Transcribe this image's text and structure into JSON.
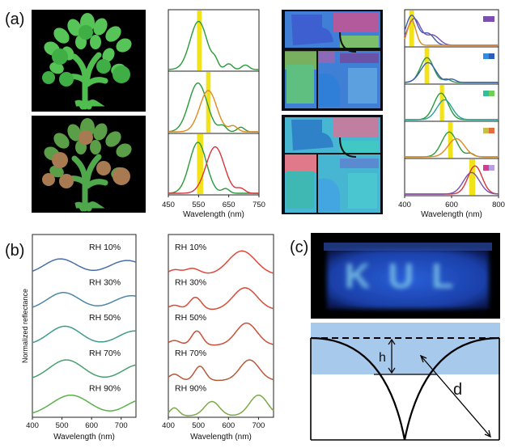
{
  "panel_labels": {
    "a": "(a)",
    "b": "(b)",
    "c": "(c)"
  },
  "colors": {
    "green_line": "#2a9a3a",
    "orange_line": "#e08a20",
    "red_line": "#d8343a",
    "yellow_band": "#f2e21a",
    "blue_line": "#3a5fb0",
    "purple_line": "#7a4fb0",
    "diagram_fill": "#a7c9ec",
    "device_glow": "#3a6ff0"
  },
  "chart_data": [
    {
      "id": "a-center",
      "type": "line",
      "xlabel": "Wavelength (nm)",
      "xlim": [
        450,
        750
      ],
      "xticks": [
        450,
        550,
        650,
        750
      ],
      "xtick_labels": [
        "450",
        "550",
        "650",
        "750"
      ],
      "subplots": [
        {
          "band": [
            545,
            560
          ],
          "series": [
            {
              "color": "green",
              "peaks": [
                [
                  550,
                  0.85,
                  28
                ],
                [
                  605,
                  0.12,
                  10
                ],
                [
                  650,
                  0.1,
                  12
                ],
                [
                  705,
                  0.08,
                  12
                ]
              ]
            }
          ]
        },
        {
          "band": [
            575,
            590
          ],
          "series": [
            {
              "color": "green",
              "peaks": [
                [
                  548,
                  0.85,
                  30
                ],
                [
                  630,
                  0.1,
                  12
                ],
                [
                  690,
                  0.08,
                  12
                ]
              ]
            },
            {
              "color": "orange",
              "peaks": [
                [
                  582,
                  0.72,
                  28
                ],
                [
                  665,
                  0.1,
                  14
                ]
              ]
            }
          ]
        },
        {
          "band": [
            545,
            565
          ],
          "series": [
            {
              "color": "green",
              "peaks": [
                [
                  548,
                  0.9,
                  28
                ],
                [
                  640,
                  0.08,
                  12
                ]
              ]
            },
            {
              "color": "red",
              "peaks": [
                [
                  605,
                  0.82,
                  30
                ],
                [
                  690,
                  0.08,
                  14
                ]
              ]
            }
          ]
        }
      ]
    },
    {
      "id": "a-right",
      "type": "line",
      "xlabel": "Wavelength (nm)",
      "xlim": [
        400,
        800
      ],
      "xticks": [
        400,
        600,
        800
      ],
      "xtick_labels": [
        "400",
        "600",
        "800"
      ],
      "subplots": [
        {
          "band": [
            420,
            440
          ],
          "swatches": [
            "#7a4fb0",
            "#7a4fb0"
          ],
          "series": [
            {
              "color": "blue",
              "peaks": [
                [
                  430,
                  0.9,
                  25
                ],
                [
                  500,
                  0.35,
                  25
                ]
              ]
            },
            {
              "color": "purple",
              "peaks": [
                [
                  440,
                  0.8,
                  28
                ],
                [
                  520,
                  0.3,
                  28
                ]
              ]
            },
            {
              "color": "orange",
              "peaks": [
                [
                  430,
                  0.75,
                  18
                ]
              ]
            }
          ]
        },
        {
          "band": [
            485,
            505
          ],
          "swatches": [
            "#2f8ee0",
            "#2c5fb8"
          ],
          "series": [
            {
              "color": "green",
              "peaks": [
                [
                  495,
                  0.75,
                  28
                ],
                [
                  580,
                  0.1,
                  16
                ]
              ]
            },
            {
              "color": "blue",
              "peaks": [
                [
                  500,
                  0.6,
                  32
                ],
                [
                  600,
                  0.1,
                  18
                ]
              ]
            }
          ]
        },
        {
          "band": [
            550,
            568
          ],
          "swatches": [
            "#2fbf9a",
            "#6fcf5a"
          ],
          "series": [
            {
              "color": "green",
              "peaks": [
                [
                  555,
                  0.8,
                  30
                ]
              ]
            },
            {
              "color": "teal",
              "peaks": [
                [
                  570,
                  0.6,
                  32
                ]
              ]
            }
          ]
        },
        {
          "band": [
            585,
            605
          ],
          "swatches": [
            "#c8c040",
            "#e07040"
          ],
          "series": [
            {
              "color": "green",
              "peaks": [
                [
                  590,
                  0.75,
                  32
                ],
                [
                  680,
                  0.1,
                  16
                ]
              ]
            },
            {
              "color": "orange",
              "peaks": [
                [
                  620,
                  0.55,
                  35
                ]
              ]
            }
          ]
        },
        {
          "band": [
            675,
            700
          ],
          "swatches": [
            "#d04090",
            "#b8a0e0"
          ],
          "series": [
            {
              "color": "red",
              "peaks": [
                [
                  700,
                  0.85,
                  30
                ]
              ]
            },
            {
              "color": "purple",
              "peaks": [
                [
                  685,
                  0.65,
                  34
                ]
              ]
            }
          ]
        }
      ]
    },
    {
      "id": "b-left",
      "type": "line",
      "xlabel": "Wavelength (nm)",
      "ylabel": "Normalized reflectance",
      "xlim": [
        400,
        750
      ],
      "xticks": [
        400,
        500,
        600,
        700
      ],
      "xtick_labels": [
        "400",
        "500",
        "600",
        "700"
      ],
      "series": [
        {
          "name": "RH 10%",
          "color": "#4a6fa8",
          "peaks": [
            [
              495,
              0.5,
              55
            ],
            [
              720,
              0.45,
              60
            ]
          ]
        },
        {
          "name": "RH 30%",
          "color": "#4b87a6",
          "peaks": [
            [
              505,
              0.55,
              55
            ],
            [
              735,
              0.45,
              60
            ]
          ]
        },
        {
          "name": "RH 50%",
          "color": "#3f9a8c",
          "peaks": [
            [
              510,
              0.6,
              55
            ],
            [
              745,
              0.45,
              55
            ]
          ]
        },
        {
          "name": "RH 70%",
          "color": "#46a070",
          "peaks": [
            [
              515,
              0.65,
              58
            ],
            [
              760,
              0.5,
              55
            ]
          ]
        },
        {
          "name": "RH 90%",
          "color": "#5cb04c",
          "peaks": [
            [
              530,
              0.65,
              65
            ],
            [
              770,
              0.5,
              55
            ]
          ]
        }
      ]
    },
    {
      "id": "b-right",
      "type": "line",
      "xlabel": "Wavelength (nm)",
      "xlim": [
        400,
        750
      ],
      "xticks": [
        400,
        500,
        600,
        700
      ],
      "xtick_labels": [
        "400",
        "500",
        "600",
        "700"
      ],
      "series": [
        {
          "name": "RH 10%",
          "color": "#e0473a",
          "peaks": [
            [
              420,
              0.15,
              20
            ],
            [
              480,
              0.2,
              25
            ],
            [
              645,
              0.75,
              45
            ]
          ]
        },
        {
          "name": "RH 30%",
          "color": "#d84a38",
          "peaks": [
            [
              420,
              0.15,
              20
            ],
            [
              490,
              0.4,
              20
            ],
            [
              655,
              0.7,
              40
            ]
          ]
        },
        {
          "name": "RH 50%",
          "color": "#c94f38",
          "peaks": [
            [
              420,
              0.15,
              20
            ],
            [
              495,
              0.45,
              18
            ],
            [
              660,
              0.7,
              35
            ]
          ]
        },
        {
          "name": "RH 70%",
          "color": "#b55a3a",
          "peaks": [
            [
              420,
              0.2,
              18
            ],
            [
              505,
              0.45,
              18
            ],
            [
              670,
              0.65,
              32
            ]
          ]
        },
        {
          "name": "RH 90%",
          "color": "#7ca948",
          "peaks": [
            [
              420,
              0.25,
              15
            ],
            [
              545,
              0.45,
              25
            ],
            [
              700,
              0.65,
              30
            ]
          ]
        }
      ]
    }
  ],
  "image_c": {
    "letters": "KUL"
  },
  "diagram": {
    "label_h": "h",
    "label_d": "d"
  }
}
